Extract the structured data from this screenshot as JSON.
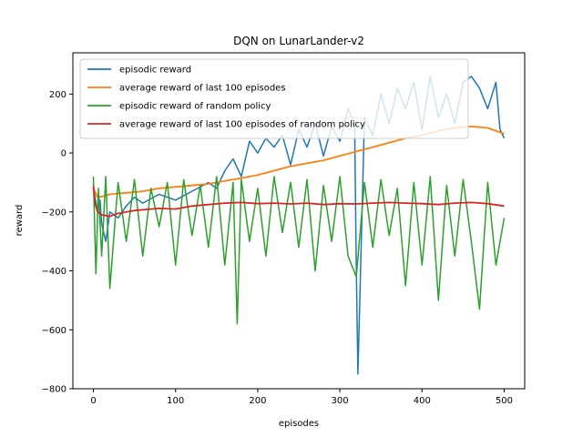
{
  "chart_data": {
    "type": "line",
    "title": "DQN on LunarLander-v2",
    "xlabel": "episodes",
    "ylabel": "reward",
    "xlim": [
      -25,
      525
    ],
    "ylim": [
      -800,
      340
    ],
    "xticks": [
      0,
      100,
      200,
      300,
      400,
      500
    ],
    "yticks": [
      -800,
      -600,
      -400,
      -200,
      0,
      200
    ],
    "grid": false,
    "legend": "top-left",
    "series": [
      {
        "name": "episodic reward",
        "color": "#1f77b4",
        "x": [
          0,
          2,
          5,
          8,
          10,
          15,
          20,
          30,
          40,
          50,
          60,
          80,
          100,
          120,
          140,
          150,
          160,
          170,
          180,
          190,
          200,
          210,
          220,
          230,
          240,
          250,
          260,
          270,
          280,
          290,
          300,
          310,
          318,
          320,
          322,
          330,
          340,
          350,
          360,
          370,
          380,
          390,
          400,
          410,
          420,
          430,
          440,
          450,
          460,
          470,
          480,
          490,
          495,
          500
        ],
        "values": [
          -120,
          -150,
          -200,
          -160,
          -240,
          -300,
          -200,
          -220,
          -180,
          -150,
          -170,
          -140,
          -160,
          -130,
          -100,
          -120,
          -60,
          -20,
          -80,
          40,
          0,
          50,
          20,
          60,
          -40,
          80,
          20,
          100,
          -10,
          90,
          40,
          150,
          100,
          -380,
          -750,
          120,
          60,
          200,
          100,
          220,
          150,
          240,
          80,
          260,
          120,
          200,
          100,
          240,
          260,
          220,
          150,
          240,
          80,
          50
        ]
      },
      {
        "name": "average reward of last 100 episodes",
        "color": "#ff7f0e",
        "x": [
          0,
          5,
          10,
          20,
          40,
          60,
          80,
          100,
          120,
          140,
          160,
          180,
          200,
          220,
          240,
          260,
          280,
          300,
          320,
          340,
          360,
          380,
          400,
          420,
          440,
          460,
          480,
          500
        ],
        "values": [
          -120,
          -150,
          -148,
          -140,
          -135,
          -130,
          -120,
          -115,
          -110,
          -105,
          -95,
          -85,
          -75,
          -60,
          -45,
          -35,
          -25,
          -10,
          5,
          20,
          35,
          50,
          60,
          75,
          85,
          90,
          85,
          65
        ]
      },
      {
        "name": "episodic reward of random policy",
        "color": "#2ca02c",
        "x": [
          0,
          3,
          6,
          10,
          15,
          20,
          30,
          40,
          50,
          60,
          70,
          80,
          90,
          100,
          110,
          120,
          130,
          140,
          150,
          160,
          170,
          175,
          180,
          190,
          200,
          210,
          220,
          230,
          240,
          250,
          260,
          270,
          280,
          290,
          300,
          310,
          320,
          330,
          340,
          350,
          360,
          370,
          380,
          390,
          400,
          410,
          420,
          430,
          440,
          450,
          460,
          470,
          480,
          490,
          500
        ],
        "values": [
          -80,
          -410,
          -120,
          -350,
          -80,
          -460,
          -100,
          -300,
          -90,
          -350,
          -120,
          -250,
          -100,
          -380,
          -90,
          -280,
          -110,
          -320,
          -80,
          -380,
          -100,
          -580,
          -90,
          -300,
          -120,
          -350,
          -80,
          -270,
          -100,
          -320,
          -90,
          -400,
          -110,
          -300,
          -80,
          -350,
          -420,
          -100,
          -320,
          -90,
          -280,
          -120,
          -450,
          -100,
          -380,
          -80,
          -500,
          -110,
          -350,
          -90,
          -300,
          -530,
          -100,
          -380,
          -220
        ]
      },
      {
        "name": "average reward of last 100 episodes of random policy",
        "color": "#d62728",
        "x": [
          0,
          2,
          5,
          10,
          20,
          30,
          50,
          80,
          100,
          120,
          140,
          160,
          180,
          200,
          220,
          240,
          260,
          280,
          300,
          320,
          340,
          360,
          380,
          400,
          420,
          440,
          460,
          480,
          500
        ],
        "values": [
          -110,
          -170,
          -200,
          -210,
          -215,
          -205,
          -195,
          -188,
          -190,
          -180,
          -175,
          -170,
          -168,
          -172,
          -170,
          -173,
          -170,
          -175,
          -172,
          -173,
          -170,
          -168,
          -170,
          -172,
          -175,
          -170,
          -168,
          -172,
          -180
        ]
      }
    ]
  }
}
